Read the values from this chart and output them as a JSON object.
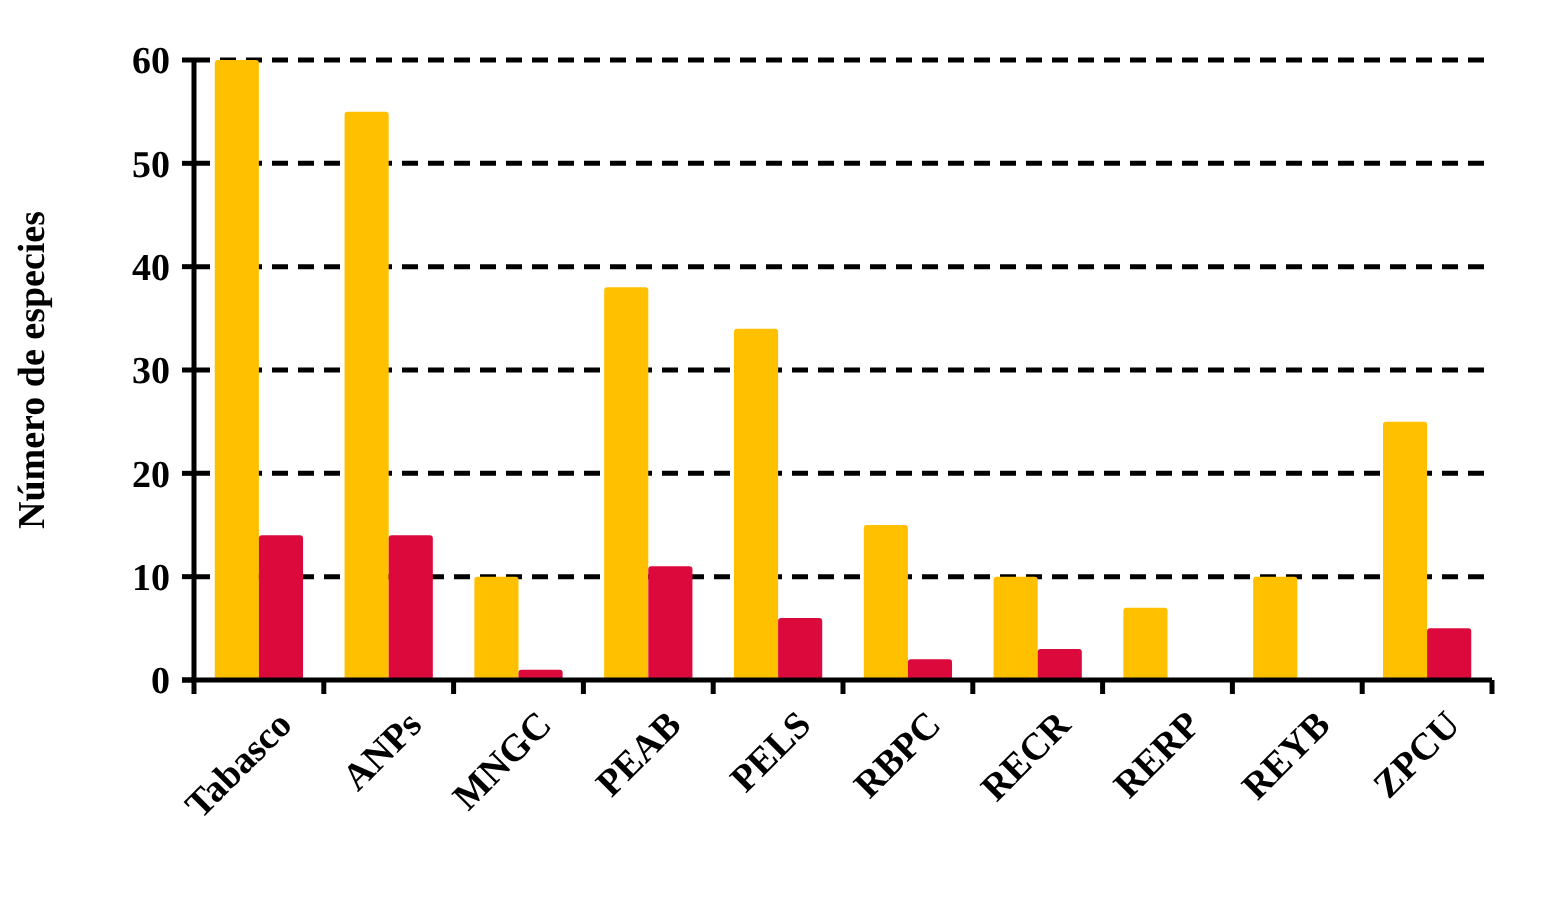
{
  "chart_data": {
    "type": "bar",
    "ylabel": "Número de especies",
    "categories": [
      "Tabasco",
      "ANPs",
      "MNGC",
      "PEAB",
      "PELS",
      "RBPC",
      "RECR",
      "RERP",
      "REYB",
      "ZPCU"
    ],
    "series": [
      {
        "color": "#ffc000",
        "values": [
          60,
          55,
          10,
          38,
          34,
          15,
          10,
          7,
          10,
          25
        ]
      },
      {
        "color": "#dc0a3c",
        "values": [
          14,
          14,
          1,
          11,
          6,
          2,
          3,
          0,
          0,
          5
        ]
      }
    ],
    "ylim": [
      0,
      60
    ],
    "yticks": [
      0,
      10,
      20,
      30,
      40,
      50,
      60
    ],
    "grid": "y"
  }
}
